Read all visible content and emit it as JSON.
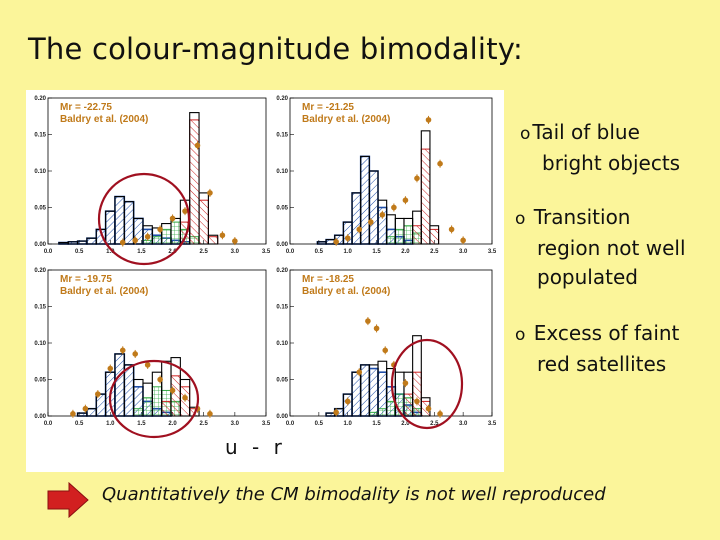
{
  "slide": {
    "title": "The colour-magnitude bimodality:",
    "xlabel": "u - r",
    "bullets": [
      {
        "marker": "o",
        "lines": [
          "Tail of blue",
          "bright objects"
        ]
      },
      {
        "marker": "o",
        "lines": [
          "Transition",
          "region not well",
          "populated"
        ]
      },
      {
        "marker": "o",
        "lines": [
          "Excess of faint",
          "red satellites"
        ]
      }
    ],
    "conclusion": "Quantitatively the CM bimodality is not well reproduced"
  },
  "colors": {
    "background": "#fbf59a",
    "model_blue": "#1f4ea8",
    "model_green": "#33aa44",
    "model_red": "#cc2222",
    "model_total": "#000000",
    "data_points": "#c07a1a",
    "annotation_circle": "#a01020",
    "arrow": "#d22020"
  },
  "chart_data": [
    {
      "type": "bar",
      "legend": "Baldry et al. (2004)",
      "label": "Mr = -22.75",
      "mag": "-22.75",
      "xlim": [
        0,
        3.5
      ],
      "ylim": [
        0,
        0.2
      ],
      "xticks": [
        "0.0",
        "0.5",
        "1.0",
        "1.5",
        "2.0",
        "2.5",
        "3.0",
        "3.5"
      ],
      "yticks": [
        "0.00",
        "0.05",
        "0.10",
        "0.15",
        "0.20"
      ],
      "series": [
        {
          "name": "blue",
          "x": [
            0.25,
            0.4,
            0.55,
            0.7,
            0.85,
            1.0,
            1.15,
            1.3,
            1.45,
            1.6,
            1.75,
            1.9,
            2.05,
            2.2
          ],
          "values": [
            0.002,
            0.003,
            0.004,
            0.008,
            0.02,
            0.045,
            0.065,
            0.058,
            0.035,
            0.02,
            0.012,
            0.008,
            0.005,
            0.003
          ]
        },
        {
          "name": "green",
          "x": [
            1.6,
            1.75,
            1.9,
            2.05,
            2.2,
            2.35
          ],
          "values": [
            0.005,
            0.01,
            0.02,
            0.03,
            0.02,
            0.01
          ]
        },
        {
          "name": "red",
          "x": [
            2.2,
            2.35,
            2.5,
            2.65
          ],
          "values": [
            0.03,
            0.17,
            0.06,
            0.01
          ]
        },
        {
          "name": "total",
          "x": [
            0.25,
            0.4,
            0.55,
            0.7,
            0.85,
            1.0,
            1.15,
            1.3,
            1.45,
            1.6,
            1.75,
            1.9,
            2.05,
            2.2,
            2.35,
            2.5,
            2.65
          ],
          "values": [
            0.002,
            0.003,
            0.004,
            0.008,
            0.02,
            0.045,
            0.065,
            0.058,
            0.035,
            0.025,
            0.022,
            0.028,
            0.035,
            0.06,
            0.18,
            0.07,
            0.012
          ]
        },
        {
          "name": "Baldry et al. (2004)",
          "x": [
            1.2,
            1.4,
            1.6,
            1.8,
            2.0,
            2.2,
            2.4,
            2.6,
            2.8,
            3.0
          ],
          "values": [
            0.002,
            0.005,
            0.01,
            0.02,
            0.035,
            0.045,
            0.135,
            0.07,
            0.012,
            0.004
          ]
        }
      ],
      "circled": true
    },
    {
      "type": "bar",
      "legend": "Baldry et al. (2004)",
      "label": "Mr = -21.25",
      "mag": "-21.25",
      "xlim": [
        0,
        3.5
      ],
      "ylim": [
        0,
        0.2
      ],
      "xticks": [
        "0.0",
        "0.5",
        "1.0",
        "1.5",
        "2.0",
        "2.5",
        "3.0",
        "3.5"
      ],
      "yticks": [
        "0.00",
        "0.05",
        "0.10",
        "0.15",
        "0.20"
      ],
      "series": [
        {
          "name": "blue",
          "x": [
            0.55,
            0.7,
            0.85,
            1.0,
            1.15,
            1.3,
            1.45,
            1.6,
            1.75,
            1.9,
            2.05
          ],
          "values": [
            0.003,
            0.006,
            0.012,
            0.03,
            0.07,
            0.12,
            0.1,
            0.05,
            0.02,
            0.01,
            0.005
          ]
        },
        {
          "name": "green",
          "x": [
            1.75,
            1.9,
            2.05,
            2.2
          ],
          "values": [
            0.01,
            0.02,
            0.025,
            0.015
          ]
        },
        {
          "name": "red",
          "x": [
            2.2,
            2.35,
            2.5
          ],
          "values": [
            0.025,
            0.13,
            0.02
          ]
        },
        {
          "name": "total",
          "x": [
            0.55,
            0.7,
            0.85,
            1.0,
            1.15,
            1.3,
            1.45,
            1.6,
            1.75,
            1.9,
            2.05,
            2.2,
            2.35,
            2.5
          ],
          "values": [
            0.003,
            0.006,
            0.012,
            0.03,
            0.07,
            0.12,
            0.1,
            0.06,
            0.04,
            0.035,
            0.035,
            0.045,
            0.155,
            0.025
          ]
        },
        {
          "name": "Baldry et al. (2004)",
          "x": [
            0.8,
            1.0,
            1.2,
            1.4,
            1.6,
            1.8,
            2.0,
            2.2,
            2.4,
            2.6,
            2.8,
            3.0
          ],
          "values": [
            0.003,
            0.008,
            0.02,
            0.03,
            0.04,
            0.05,
            0.06,
            0.09,
            0.17,
            0.11,
            0.02,
            0.005
          ]
        }
      ],
      "circled": false
    },
    {
      "type": "bar",
      "legend": "Baldry et al. (2004)",
      "label": "Mr = -19.75",
      "mag": "-19.75",
      "xlim": [
        0,
        3.5
      ],
      "ylim": [
        0,
        0.2
      ],
      "xticks": [
        "0.0",
        "0.5",
        "1.0",
        "1.5",
        "2.0",
        "2.5",
        "3.0",
        "3.5"
      ],
      "yticks": [
        "0.00",
        "0.05",
        "0.10",
        "0.15",
        "0.20"
      ],
      "series": [
        {
          "name": "blue",
          "x": [
            0.55,
            0.7,
            0.85,
            1.0,
            1.15,
            1.3,
            1.45,
            1.6,
            1.75,
            1.9
          ],
          "values": [
            0.004,
            0.01,
            0.03,
            0.06,
            0.085,
            0.07,
            0.04,
            0.02,
            0.01,
            0.005
          ]
        },
        {
          "name": "green",
          "x": [
            1.45,
            1.6,
            1.75,
            1.9,
            2.05
          ],
          "values": [
            0.01,
            0.025,
            0.04,
            0.035,
            0.02
          ]
        },
        {
          "name": "red",
          "x": [
            1.9,
            2.05,
            2.2,
            2.35
          ],
          "values": [
            0.02,
            0.055,
            0.04,
            0.01
          ]
        },
        {
          "name": "total",
          "x": [
            0.55,
            0.7,
            0.85,
            1.0,
            1.15,
            1.3,
            1.45,
            1.6,
            1.75,
            1.9,
            2.05,
            2.2,
            2.35
          ],
          "values": [
            0.004,
            0.01,
            0.03,
            0.06,
            0.085,
            0.07,
            0.05,
            0.045,
            0.06,
            0.075,
            0.08,
            0.05,
            0.012
          ]
        },
        {
          "name": "Baldry et al. (2004)",
          "x": [
            0.4,
            0.6,
            0.8,
            1.0,
            1.2,
            1.4,
            1.6,
            1.8,
            2.0,
            2.2,
            2.4,
            2.6
          ],
          "values": [
            0.003,
            0.01,
            0.03,
            0.065,
            0.09,
            0.085,
            0.07,
            0.05,
            0.035,
            0.025,
            0.01,
            0.003
          ]
        }
      ],
      "circled": true
    },
    {
      "type": "bar",
      "legend": "Baldry et al. (2004)",
      "label": "Mr = -18.25",
      "mag": "-18.25",
      "xlim": [
        0,
        3.5
      ],
      "ylim": [
        0,
        0.2
      ],
      "xticks": [
        "0.0",
        "0.5",
        "1.0",
        "1.5",
        "2.0",
        "2.5",
        "3.0",
        "3.5"
      ],
      "yticks": [
        "0.00",
        "0.05",
        "0.10",
        "0.15",
        "0.20"
      ],
      "series": [
        {
          "name": "blue",
          "x": [
            0.7,
            0.85,
            1.0,
            1.15,
            1.3,
            1.45,
            1.6,
            1.75,
            1.9,
            2.05,
            2.2
          ],
          "values": [
            0.004,
            0.01,
            0.03,
            0.06,
            0.07,
            0.065,
            0.06,
            0.04,
            0.03,
            0.015,
            0.005
          ]
        },
        {
          "name": "green",
          "x": [
            1.45,
            1.6,
            1.75,
            1.9,
            2.05,
            2.2
          ],
          "values": [
            0.005,
            0.01,
            0.02,
            0.03,
            0.025,
            0.01
          ]
        },
        {
          "name": "red",
          "x": [
            2.05,
            2.2,
            2.35
          ],
          "values": [
            0.03,
            0.06,
            0.02
          ]
        },
        {
          "name": "total",
          "x": [
            0.7,
            0.85,
            1.0,
            1.15,
            1.3,
            1.45,
            1.6,
            1.75,
            1.9,
            2.05,
            2.2,
            2.35
          ],
          "values": [
            0.004,
            0.01,
            0.03,
            0.06,
            0.07,
            0.07,
            0.075,
            0.065,
            0.06,
            0.06,
            0.11,
            0.025
          ]
        },
        {
          "name": "Baldry et al. (2004)",
          "x": [
            0.8,
            1.0,
            1.2,
            1.35,
            1.5,
            1.65,
            1.8,
            2.0,
            2.2,
            2.4,
            2.6
          ],
          "values": [
            0.005,
            0.02,
            0.06,
            0.13,
            0.12,
            0.09,
            0.07,
            0.045,
            0.02,
            0.01,
            0.003
          ]
        }
      ],
      "circled": true
    }
  ]
}
